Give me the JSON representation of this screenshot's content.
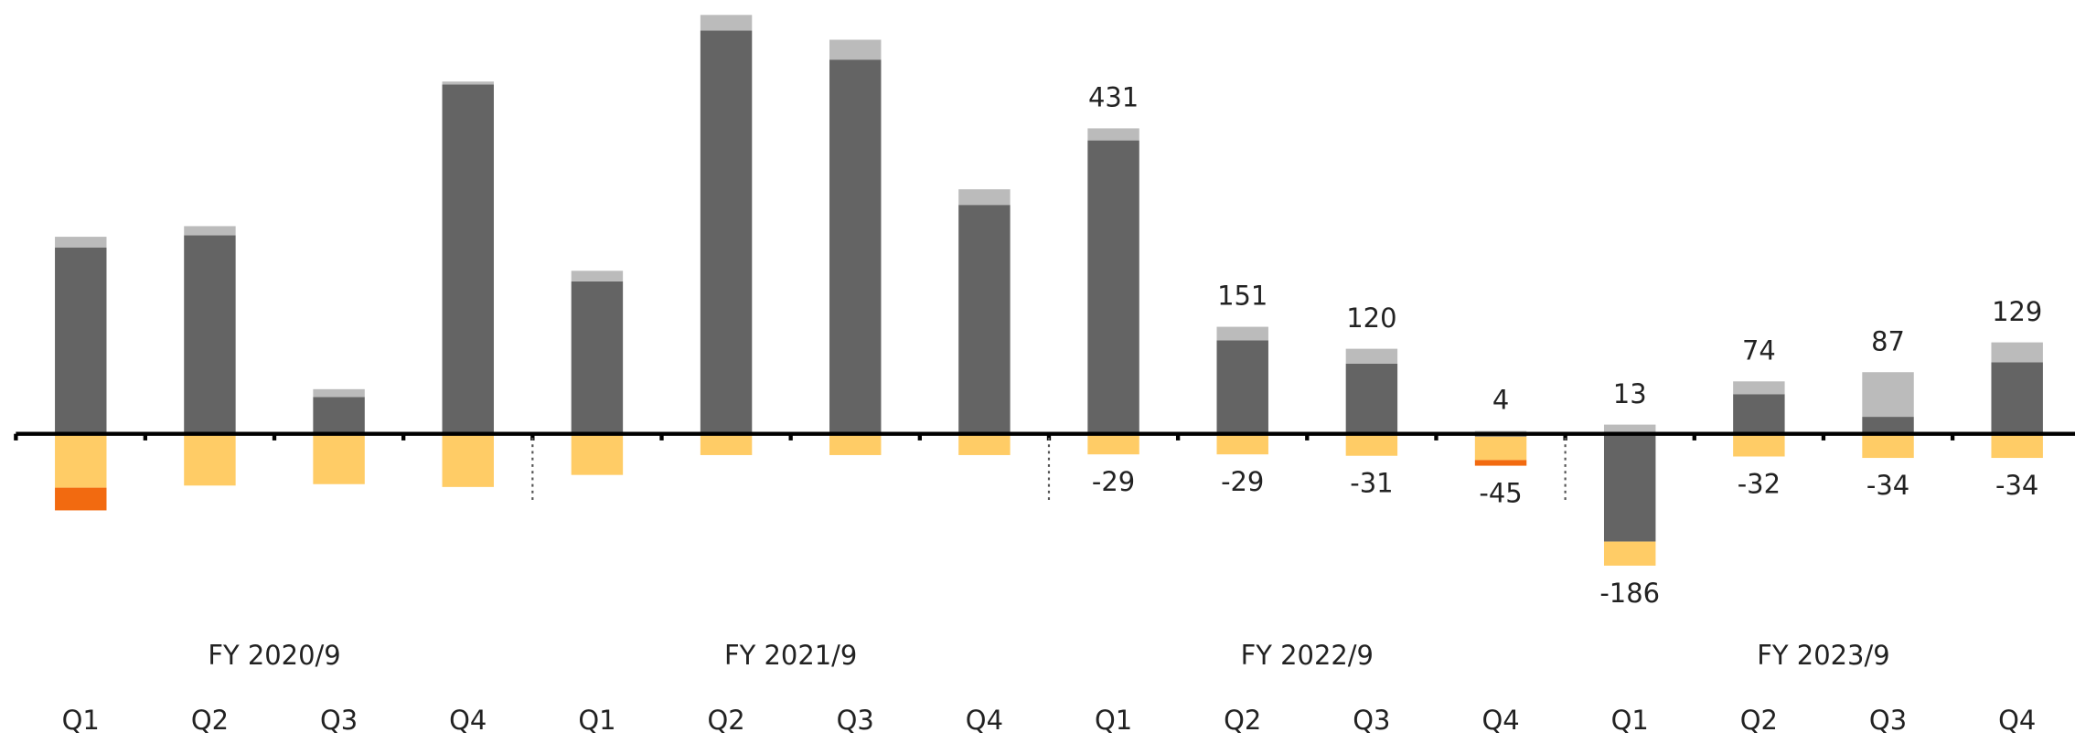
{
  "chart_data": {
    "type": "stacked_bar",
    "groups": [
      "FY 2020/9",
      "FY 2021/9",
      "FY 2022/9",
      "FY 2023/9"
    ],
    "categories": [
      "Q1",
      "Q2",
      "Q3",
      "Q4",
      "Q1",
      "Q2",
      "Q3",
      "Q4",
      "Q1",
      "Q2",
      "Q3",
      "Q4",
      "Q1",
      "Q2",
      "Q3",
      "Q4"
    ],
    "series": [
      {
        "color": "#646464",
        "values": [
          263,
          280,
          52,
          493,
          215,
          569,
          528,
          323,
          414,
          132,
          99,
          -4,
          -152,
          56,
          24,
          101
        ]
      },
      {
        "color": "#bbbbbb",
        "values": [
          15,
          13,
          11,
          4,
          15,
          22,
          28,
          22,
          17,
          19,
          21,
          4,
          13,
          18,
          63,
          28
        ]
      },
      {
        "color": "#ffcc66",
        "values": [
          -76,
          -73,
          -71,
          -75,
          -58,
          -30,
          -30,
          -30,
          -29,
          -29,
          -31,
          -33,
          -34,
          -32,
          -34,
          -34
        ]
      },
      {
        "color": "#f26a10",
        "values": [
          -32,
          null,
          null,
          null,
          null,
          null,
          null,
          null,
          null,
          null,
          null,
          -8,
          null,
          null,
          null,
          null
        ]
      }
    ],
    "total_labels": [
      null,
      null,
      null,
      null,
      null,
      null,
      null,
      null,
      431,
      151,
      120,
      4,
      13,
      74,
      87,
      129
    ],
    "negative_labels": [
      null,
      null,
      null,
      null,
      null,
      null,
      null,
      null,
      -29,
      -29,
      -31,
      -45,
      -186,
      -32,
      -34,
      -34
    ],
    "ylim": [
      -431,
      612
    ]
  }
}
